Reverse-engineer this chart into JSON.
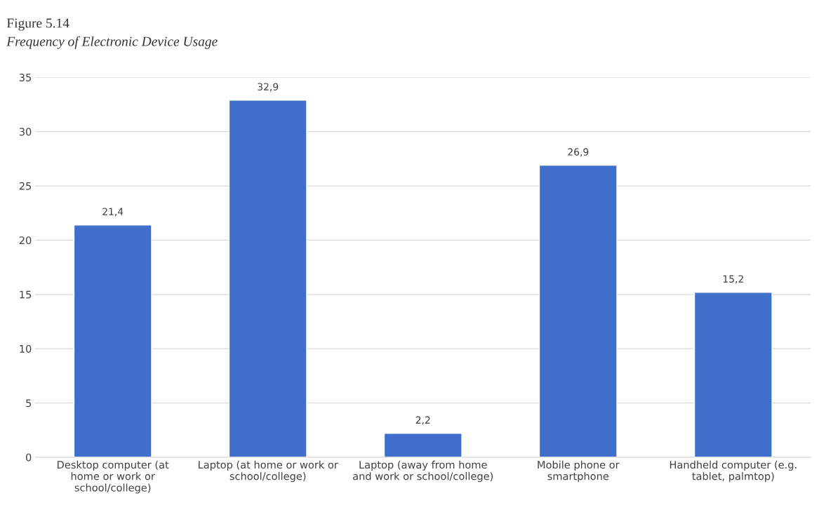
{
  "chart_data": {
    "type": "bar",
    "title": "Figure 5.14",
    "subtitle": "Frequency of Electronic Device Usage",
    "categories": [
      "Desktop computer (at\nhome or work or\nschool/college)",
      "Laptop (at home or work or\nschool/college)",
      "Laptop (away from home\nand work or school/college)",
      "Mobile phone or\nsmartphone",
      "Handheld computer (e.g.\ntablet, palmtop)"
    ],
    "values": [
      21.4,
      32.9,
      2.2,
      26.9,
      15.2
    ],
    "value_labels": [
      "21,4",
      "32,9",
      "2,2",
      "26,9",
      "15,2"
    ],
    "color": "#3f6fcb",
    "ylim": [
      0,
      35
    ],
    "yticks": [
      0,
      5,
      10,
      15,
      20,
      25,
      30,
      35
    ],
    "grid": "y",
    "legend": false
  }
}
